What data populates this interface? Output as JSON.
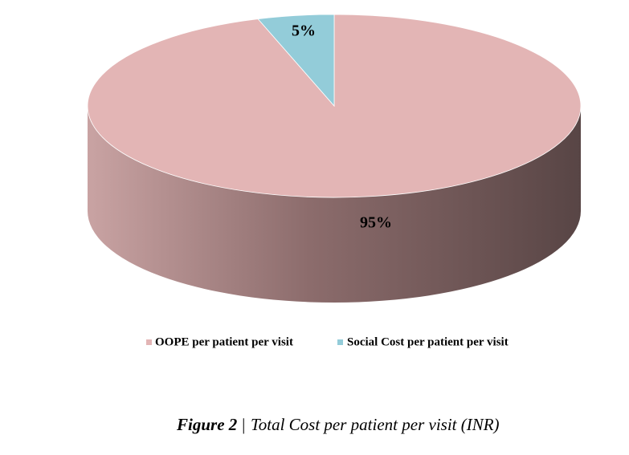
{
  "chart_data": {
    "type": "pie",
    "categories": [
      "OOPE per patient per visit",
      "Social Cost per patient per visit"
    ],
    "values": [
      95,
      5
    ],
    "value_labels": [
      "95%",
      "5%"
    ],
    "colors": [
      "#e3b5b5",
      "#93ccd9"
    ],
    "legend": "bottom",
    "figure_label": "Figure 2",
    "separator": "|",
    "title": "Total Cost per patient per visit (INR)"
  }
}
